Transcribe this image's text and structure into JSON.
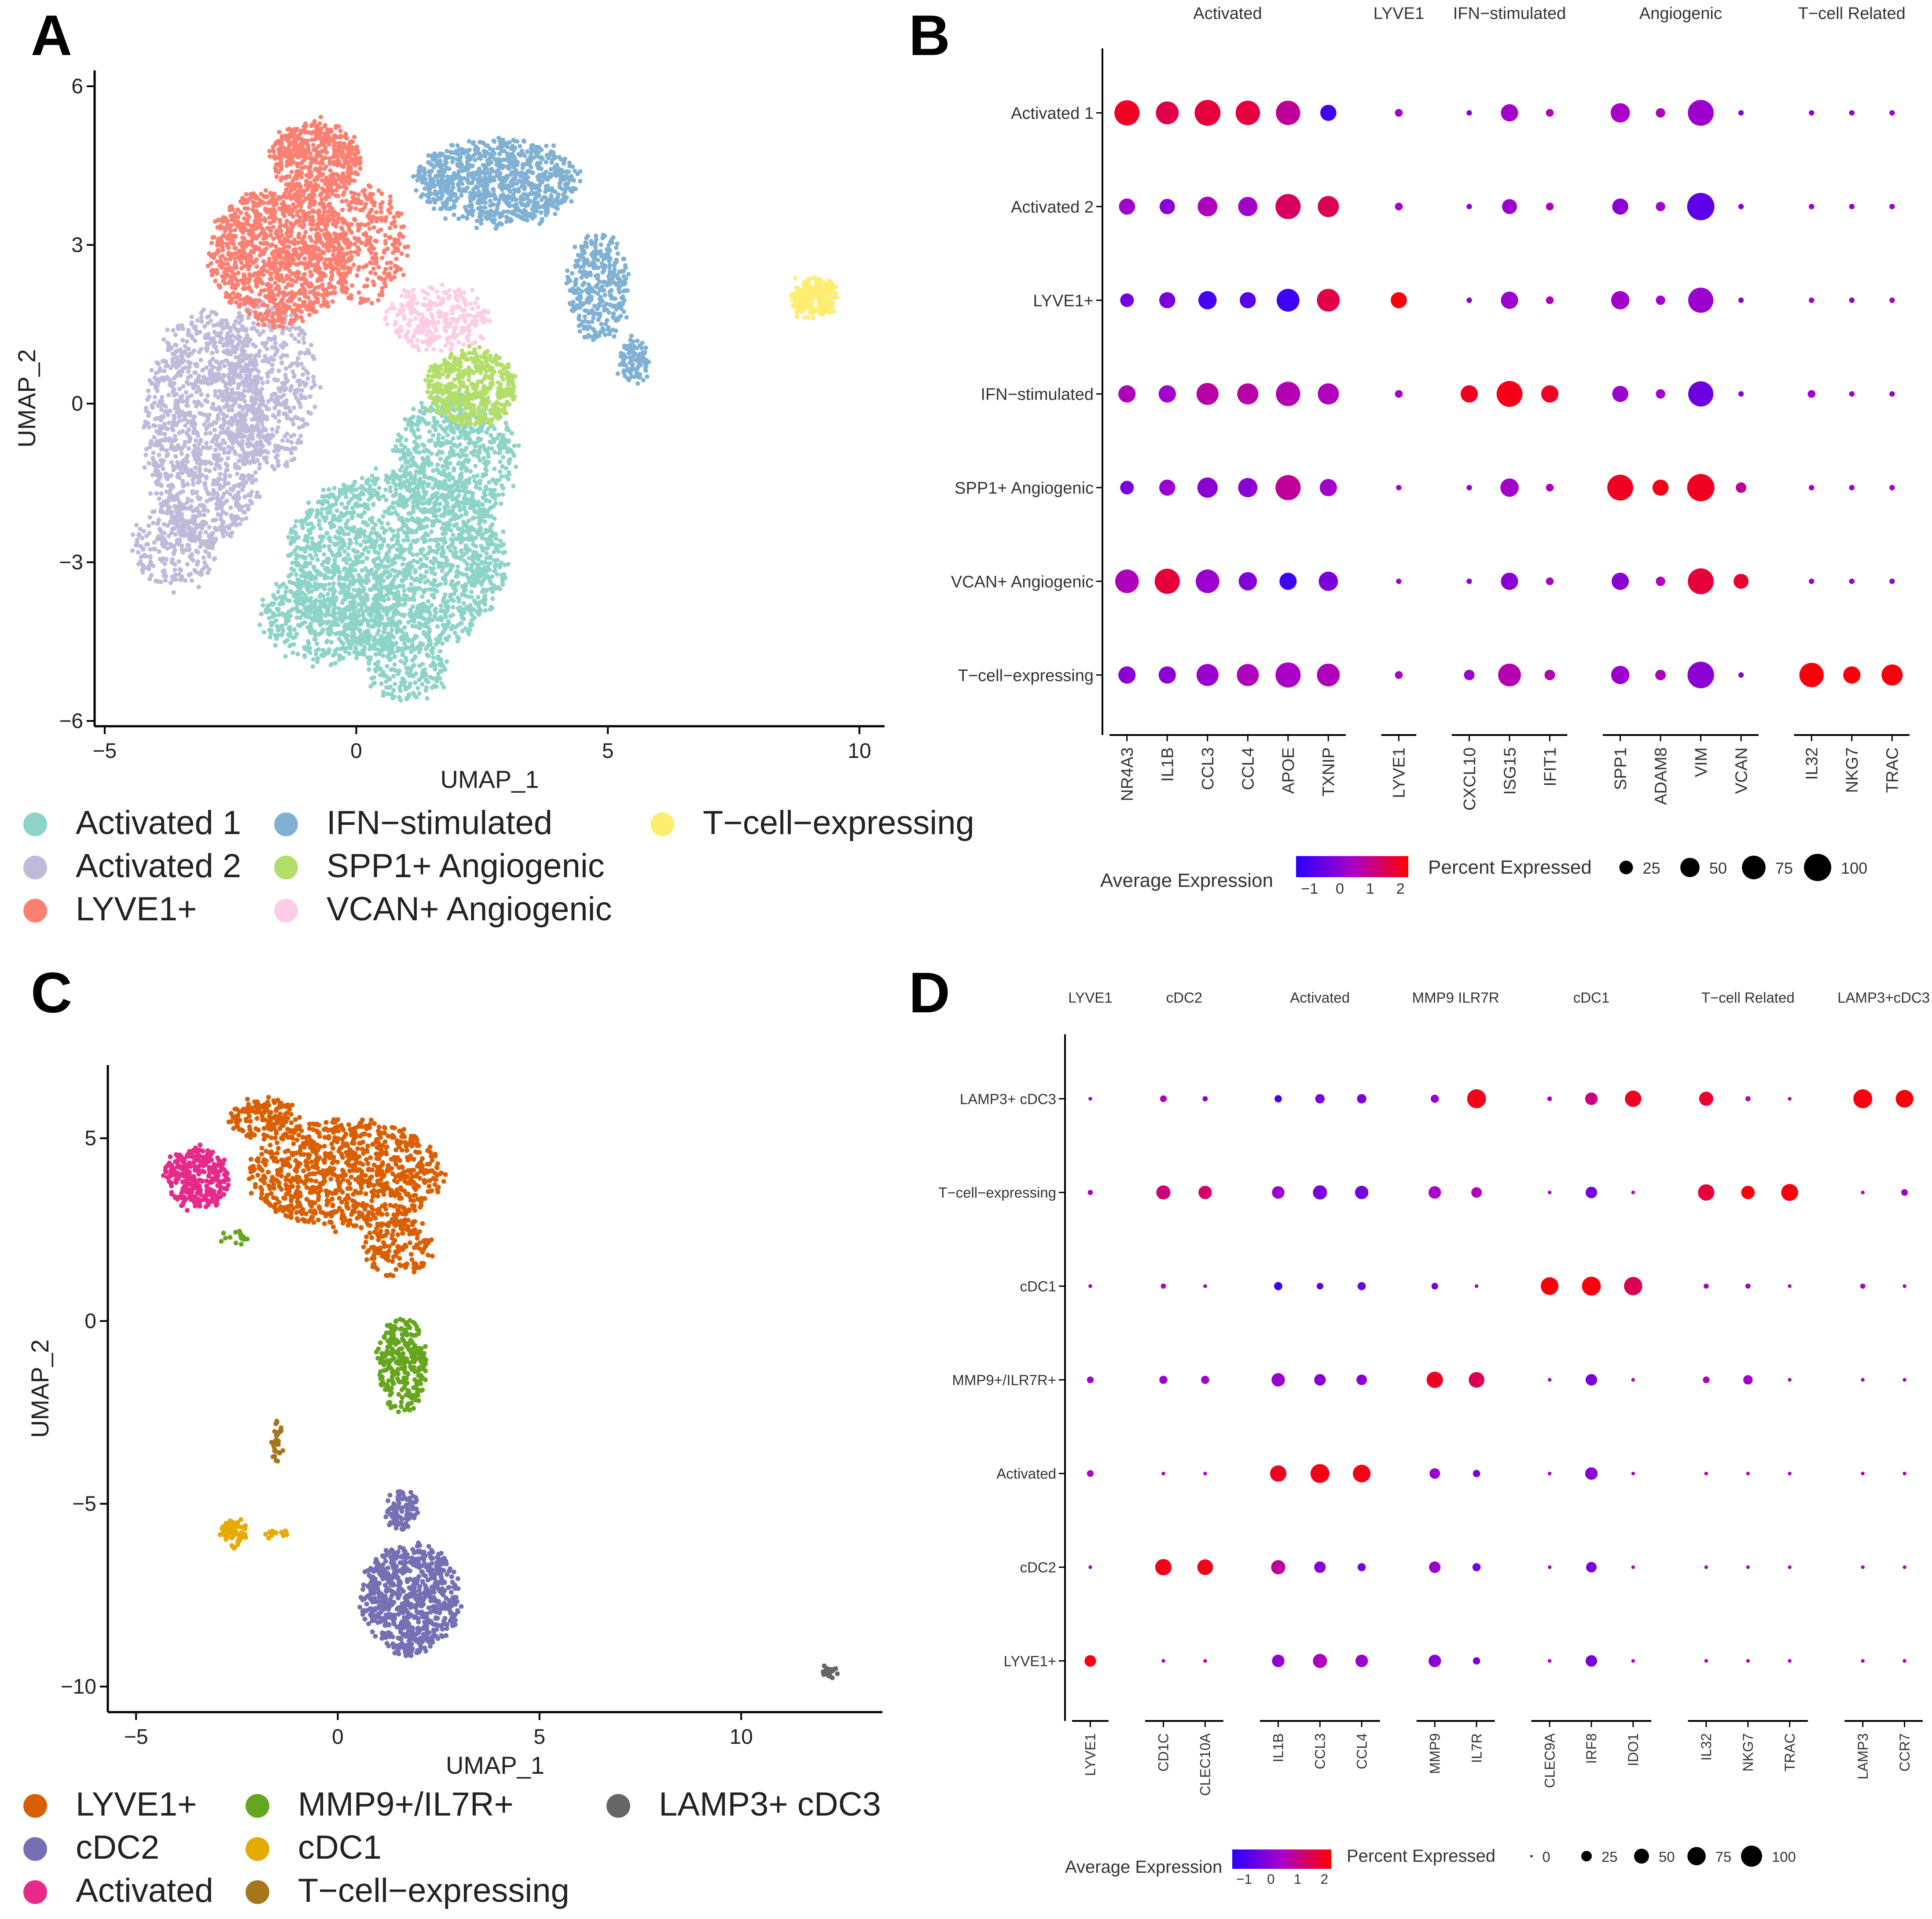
{
  "panels": {
    "A": {
      "label": "A",
      "chart_data": {
        "type": "scatter",
        "title": "",
        "xlabel": "UMAP_1",
        "ylabel": "UMAP_2",
        "xlim": [
          -5.2,
          10.5
        ],
        "ylim": [
          -6.1,
          6.3
        ],
        "xticks": [
          -5,
          0,
          5,
          10
        ],
        "yticks": [
          -6,
          -3,
          0,
          3,
          6
        ],
        "legend_position": "bottom",
        "clusters": [
          {
            "name": "Activated 1",
            "color": "#8DD3C7",
            "blobs": [
              [
                0.8,
                -3.0,
                2.2,
                1.7,
                1800
              ],
              [
                -0.5,
                -4.0,
                1.4,
                0.9,
                500
              ],
              [
                2.0,
                -1.0,
                1.2,
                1.2,
                600
              ],
              [
                1.0,
                -5.0,
                0.8,
                0.6,
                200
              ]
            ]
          },
          {
            "name": "Activated 2",
            "color": "#BEBADA",
            "blobs": [
              [
                -3.0,
                -0.5,
                1.2,
                2.2,
                1200
              ],
              [
                -1.8,
                0.3,
                1.0,
                1.6,
                500
              ],
              [
                -3.6,
                -2.7,
                0.8,
                0.8,
                250
              ]
            ]
          },
          {
            "name": "LYVE1+",
            "color": "#FB8072",
            "blobs": [
              [
                -1.5,
                2.8,
                1.4,
                1.3,
                1200
              ],
              [
                -0.8,
                4.6,
                0.9,
                0.7,
                500
              ],
              [
                0.2,
                3.0,
                0.8,
                1.1,
                300
              ]
            ]
          },
          {
            "name": "IFN−stimulated",
            "color": "#80B1D3",
            "blobs": [
              [
                2.8,
                4.2,
                1.6,
                0.8,
                900
              ],
              [
                4.8,
                2.2,
                0.6,
                1.0,
                350
              ],
              [
                5.5,
                0.8,
                0.3,
                0.4,
                100
              ]
            ]
          },
          {
            "name": "SPP1+ Angiogenic",
            "color": "#B3DE69",
            "blobs": [
              [
                2.3,
                0.3,
                0.9,
                0.7,
                500
              ]
            ]
          },
          {
            "name": "VCAN+ Angiogenic",
            "color": "#FCCDE5",
            "blobs": [
              [
                1.6,
                1.6,
                1.0,
                0.6,
                300
              ]
            ]
          },
          {
            "name": "T−cell−expressing",
            "color": "#FFED6F",
            "blobs": [
              [
                9.1,
                2.0,
                0.45,
                0.35,
                250
              ]
            ]
          }
        ]
      }
    },
    "B": {
      "label": "B",
      "chart_data": {
        "type": "dotplot",
        "legend_title_color": "Average Expression",
        "legend_title_size": "Percent Expressed",
        "color_ticks": [
          "−1",
          "0",
          "1",
          "2"
        ],
        "size_ticks": [
          "25",
          "50",
          "75",
          "100"
        ],
        "size_tick_values": [
          25,
          50,
          75,
          100
        ],
        "rows": [
          "Activated 1",
          "Activated 2",
          "LYVE1+",
          "IFN−stimulated",
          "SPP1+ Angiogenic",
          "VCAN+ Angiogenic",
          "T−cell−expressing"
        ],
        "groups": [
          {
            "name": "Activated",
            "genes": [
              "NR4A3",
              "IL1B",
              "CCL3",
              "CCL4",
              "APOE",
              "TXNIP"
            ]
          },
          {
            "name": "LYVE1",
            "genes": [
              "LYVE1"
            ]
          },
          {
            "name": "IFN−stimulated",
            "genes": [
              "CXCL10",
              "ISG15",
              "IFIT1"
            ]
          },
          {
            "name": "Angiogenic",
            "genes": [
              "SPP1",
              "ADAM8",
              "VIM",
              "VCAN"
            ]
          },
          {
            "name": "T−cell Related",
            "genes": [
              "IL32",
              "NKG7",
              "TRAC"
            ]
          }
        ],
        "pct": [
          [
            85,
            70,
            90,
            80,
            80,
            35,
            8,
            4,
            40,
            8,
            50,
            12,
            90,
            4,
            4,
            4,
            4
          ],
          [
            35,
            32,
            52,
            50,
            85,
            60,
            8,
            4,
            30,
            8,
            35,
            12,
            100,
            4,
            4,
            4,
            4
          ],
          [
            25,
            35,
            45,
            35,
            70,
            70,
            35,
            4,
            40,
            8,
            45,
            12,
            85,
            4,
            4,
            4,
            4
          ],
          [
            40,
            40,
            65,
            60,
            80,
            60,
            8,
            40,
            90,
            40,
            35,
            12,
            85,
            4,
            8,
            4,
            4
          ],
          [
            25,
            35,
            55,
            50,
            85,
            40,
            4,
            4,
            45,
            8,
            90,
            35,
            100,
            15,
            4,
            4,
            4
          ],
          [
            75,
            85,
            75,
            45,
            40,
            50,
            4,
            4,
            40,
            8,
            40,
            12,
            90,
            30,
            4,
            4,
            4
          ],
          [
            40,
            40,
            65,
            65,
            85,
            70,
            8,
            15,
            70,
            15,
            45,
            15,
            95,
            4,
            80,
            40,
            60
          ]
        ],
        "avg": [
          [
            1.8,
            1.5,
            1.6,
            1.6,
            0.8,
            -1.0,
            0.3,
            0.0,
            0.3,
            0.5,
            0.4,
            0.5,
            0.2,
            0.0,
            0.2,
            0.2,
            0.2
          ],
          [
            0.3,
            0.0,
            0.5,
            0.3,
            1.3,
            1.4,
            0.3,
            0.0,
            0.2,
            0.5,
            0.0,
            0.3,
            -0.6,
            0.0,
            0.2,
            0.2,
            0.2
          ],
          [
            -0.3,
            -0.2,
            -0.9,
            -0.7,
            -1.0,
            1.5,
            2.0,
            0.0,
            0.2,
            0.5,
            0.3,
            0.3,
            0.2,
            0.0,
            0.2,
            0.2,
            0.2
          ],
          [
            0.5,
            0.3,
            0.7,
            0.7,
            0.6,
            0.5,
            0.3,
            1.8,
            1.9,
            1.8,
            0.2,
            0.3,
            -0.4,
            0.0,
            0.3,
            0.2,
            0.2
          ],
          [
            -0.2,
            0.2,
            0.0,
            0.0,
            0.8,
            0.3,
            0.3,
            0.0,
            0.3,
            0.5,
            1.8,
            1.9,
            1.8,
            0.8,
            0.2,
            0.2,
            0.2
          ],
          [
            0.5,
            1.6,
            0.2,
            -0.1,
            -1.0,
            -0.2,
            0.3,
            0.0,
            0.0,
            0.5,
            0.0,
            0.5,
            1.6,
            1.7,
            0.2,
            0.2,
            0.2
          ],
          [
            0.0,
            0.0,
            0.2,
            0.5,
            0.4,
            0.5,
            0.3,
            0.2,
            0.6,
            0.6,
            0.2,
            0.5,
            0.0,
            0.0,
            2.0,
            2.0,
            2.0
          ]
        ]
      }
    },
    "C": {
      "label": "C",
      "chart_data": {
        "type": "scatter",
        "title": "",
        "xlabel": "UMAP_1",
        "ylabel": "UMAP_2",
        "xlim": [
          -5.7,
          13.5
        ],
        "ylim": [
          -10.7,
          7.0
        ],
        "xticks": [
          -5,
          0,
          5,
          10
        ],
        "yticks": [
          -10,
          -5,
          0,
          5
        ],
        "legend_position": "bottom",
        "clusters": [
          {
            "name": "LYVE1+",
            "color": "#D95F02",
            "blobs": [
              [
                0.2,
                4.0,
                2.4,
                1.5,
                900
              ],
              [
                -1.8,
                5.5,
                0.9,
                0.6,
                150
              ],
              [
                1.5,
                2.0,
                0.9,
                0.8,
                150
              ]
            ]
          },
          {
            "name": "cDC2",
            "color": "#7570B3",
            "blobs": [
              [
                1.8,
                -7.6,
                1.2,
                1.5,
                700
              ],
              [
                1.6,
                -5.2,
                0.4,
                0.6,
                100
              ]
            ]
          },
          {
            "name": "Activated",
            "color": "#E7298A",
            "blobs": [
              [
                -3.5,
                3.9,
                0.8,
                0.8,
                300
              ]
            ]
          },
          {
            "name": "MMP9+/IL7R+",
            "color": "#66A61E",
            "blobs": [
              [
                1.6,
                -1.2,
                0.6,
                1.3,
                280
              ],
              [
                -2.6,
                2.3,
                0.3,
                0.3,
                15
              ]
            ]
          },
          {
            "name": "cDC1",
            "color": "#E6AB02",
            "blobs": [
              [
                -2.6,
                -5.8,
                0.3,
                0.35,
                70
              ],
              [
                -1.5,
                -5.8,
                0.3,
                0.1,
                12
              ]
            ]
          },
          {
            "name": "T−cell−expressing",
            "color": "#A6761D",
            "blobs": [
              [
                -1.5,
                -3.3,
                0.12,
                0.55,
                30
              ]
            ]
          },
          {
            "name": "LAMP3+ cDC3",
            "color": "#666666",
            "blobs": [
              [
                12.2,
                -9.6,
                0.15,
                0.08,
                20
              ]
            ]
          }
        ]
      }
    },
    "D": {
      "label": "D",
      "chart_data": {
        "type": "dotplot",
        "legend_title_color": "Average Expression",
        "legend_title_size": "Percent Expressed",
        "color_ticks": [
          "−1",
          "0",
          "1",
          "2"
        ],
        "size_ticks": [
          "0",
          "25",
          "50",
          "75",
          "100"
        ],
        "size_tick_values": [
          0,
          25,
          50,
          75,
          100
        ],
        "rows": [
          "LAMP3+ cDC3",
          "T−cell−expressing",
          "cDC1",
          "MMP9+/ILR7R+",
          "Activated",
          "cDC2",
          "LYVE1+"
        ],
        "groups": [
          {
            "name": "LYVE1",
            "genes": [
              "LYVE1"
            ]
          },
          {
            "name": "cDC2",
            "genes": [
              "CD1C",
              "CLEC10A"
            ]
          },
          {
            "name": "Activated",
            "genes": [
              "IL1B",
              "CCL3",
              "CCL4"
            ]
          },
          {
            "name": "MMP9 ILR7R",
            "genes": [
              "MMP9",
              "IL7R"
            ]
          },
          {
            "name": "cDC1",
            "genes": [
              "CLEC9A",
              "IRF8",
              "IDO1"
            ]
          },
          {
            "name": "T−cell Related",
            "genes": [
              "IL32",
              "NKG7",
              "TRAC"
            ]
          },
          {
            "name": "LAMP3+cDC3",
            "genes": [
              "LAMP3",
              "CCR7"
            ]
          }
        ],
        "pct": [
          [
            3,
            10,
            6,
            12,
            20,
            20,
            15,
            80,
            5,
            35,
            60,
            45,
            6,
            3,
            80,
            70
          ],
          [
            6,
            45,
            40,
            35,
            45,
            40,
            35,
            25,
            3,
            30,
            3,
            60,
            40,
            65,
            3,
            10
          ],
          [
            3,
            6,
            3,
            15,
            10,
            15,
            10,
            3,
            70,
            80,
            75,
            6,
            6,
            3,
            6,
            3
          ],
          [
            10,
            15,
            15,
            40,
            30,
            25,
            60,
            55,
            3,
            30,
            3,
            10,
            20,
            3,
            3,
            3
          ],
          [
            10,
            3,
            3,
            60,
            80,
            70,
            25,
            12,
            3,
            35,
            3,
            3,
            3,
            3,
            3,
            3
          ],
          [
            3,
            60,
            55,
            45,
            30,
            15,
            30,
            15,
            3,
            25,
            3,
            3,
            3,
            3,
            3,
            3
          ],
          [
            30,
            3,
            3,
            35,
            45,
            35,
            35,
            12,
            3,
            30,
            3,
            3,
            3,
            3,
            3,
            3
          ]
        ],
        "avg": [
          [
            0.2,
            0.5,
            0.0,
            -1.0,
            -0.2,
            -0.2,
            0.3,
            1.9,
            0.5,
            1.0,
            1.8,
            1.7,
            0.5,
            0.5,
            2.0,
            2.0
          ],
          [
            0.5,
            1.1,
            1.2,
            0.2,
            -0.2,
            -0.3,
            0.4,
            0.5,
            0.5,
            -0.3,
            0.5,
            1.6,
            2.0,
            2.0,
            0.5,
            0.3
          ],
          [
            0.2,
            0.5,
            0.3,
            -1.1,
            -0.5,
            -0.4,
            -0.2,
            0.5,
            2.0,
            2.0,
            1.4,
            0.5,
            0.5,
            0.5,
            0.4,
            0.5
          ],
          [
            0.3,
            0.2,
            0.3,
            0.2,
            0.0,
            0.0,
            1.8,
            1.4,
            0.5,
            -0.2,
            0.5,
            0.5,
            0.3,
            0.5,
            0.4,
            0.5
          ],
          [
            0.5,
            0.5,
            0.5,
            1.8,
            1.9,
            1.9,
            0.2,
            -0.2,
            0.5,
            0.0,
            0.5,
            0.5,
            0.5,
            0.5,
            0.5,
            0.5
          ],
          [
            0.4,
            1.9,
            1.9,
            0.8,
            0.0,
            -0.2,
            0.2,
            -0.2,
            0.5,
            -0.2,
            0.5,
            0.5,
            0.5,
            0.5,
            0.5,
            0.5
          ],
          [
            2.0,
            0.5,
            0.5,
            0.1,
            0.5,
            0.2,
            0.0,
            -0.3,
            0.5,
            -0.3,
            0.5,
            0.5,
            0.5,
            0.5,
            0.5,
            0.5
          ]
        ]
      }
    }
  }
}
